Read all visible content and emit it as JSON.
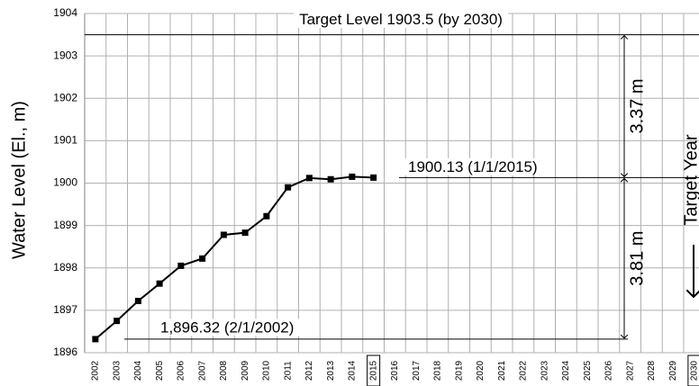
{
  "chart_data": {
    "type": "line",
    "y_label": "Water Level  (El., m)",
    "categories": [
      "2002",
      "2003",
      "2004",
      "2005",
      "2006",
      "2007",
      "2008",
      "2009",
      "2010",
      "2011",
      "2012",
      "2013",
      "2014",
      "2015",
      "2016",
      "2017",
      "2018",
      "2019",
      "2020",
      "2021",
      "2022",
      "2023",
      "2024",
      "2025",
      "2026",
      "2027",
      "2028",
      "2029",
      "2030"
    ],
    "series": [
      {
        "color": "#000000",
        "values": [
          1896.32,
          1896.75,
          1897.22,
          1897.63,
          1898.05,
          1898.22,
          1898.78,
          1898.83,
          1899.22,
          1899.9,
          1900.12,
          1900.09,
          1900.15,
          1900.13,
          null,
          null,
          null,
          null,
          null,
          null,
          null,
          null,
          null,
          null,
          null,
          null,
          null,
          null,
          null
        ]
      }
    ],
    "ylim": [
      1896,
      1904
    ],
    "yticks": [
      1896,
      1897,
      1898,
      1899,
      1900,
      1901,
      1902,
      1903,
      1904
    ],
    "grid": true,
    "annotations": [
      {
        "text": "Target Level  1903.5 (by 2030)",
        "value": 1903.5
      },
      {
        "text": "1900.13 (1/1/2015)",
        "value": 1900.13
      },
      {
        "text": "1,896.32 (2/1/2002)",
        "value": 1896.32
      }
    ],
    "dimensions": [
      "3.37 m",
      "3.81 m"
    ],
    "side_label": "Target Year"
  }
}
